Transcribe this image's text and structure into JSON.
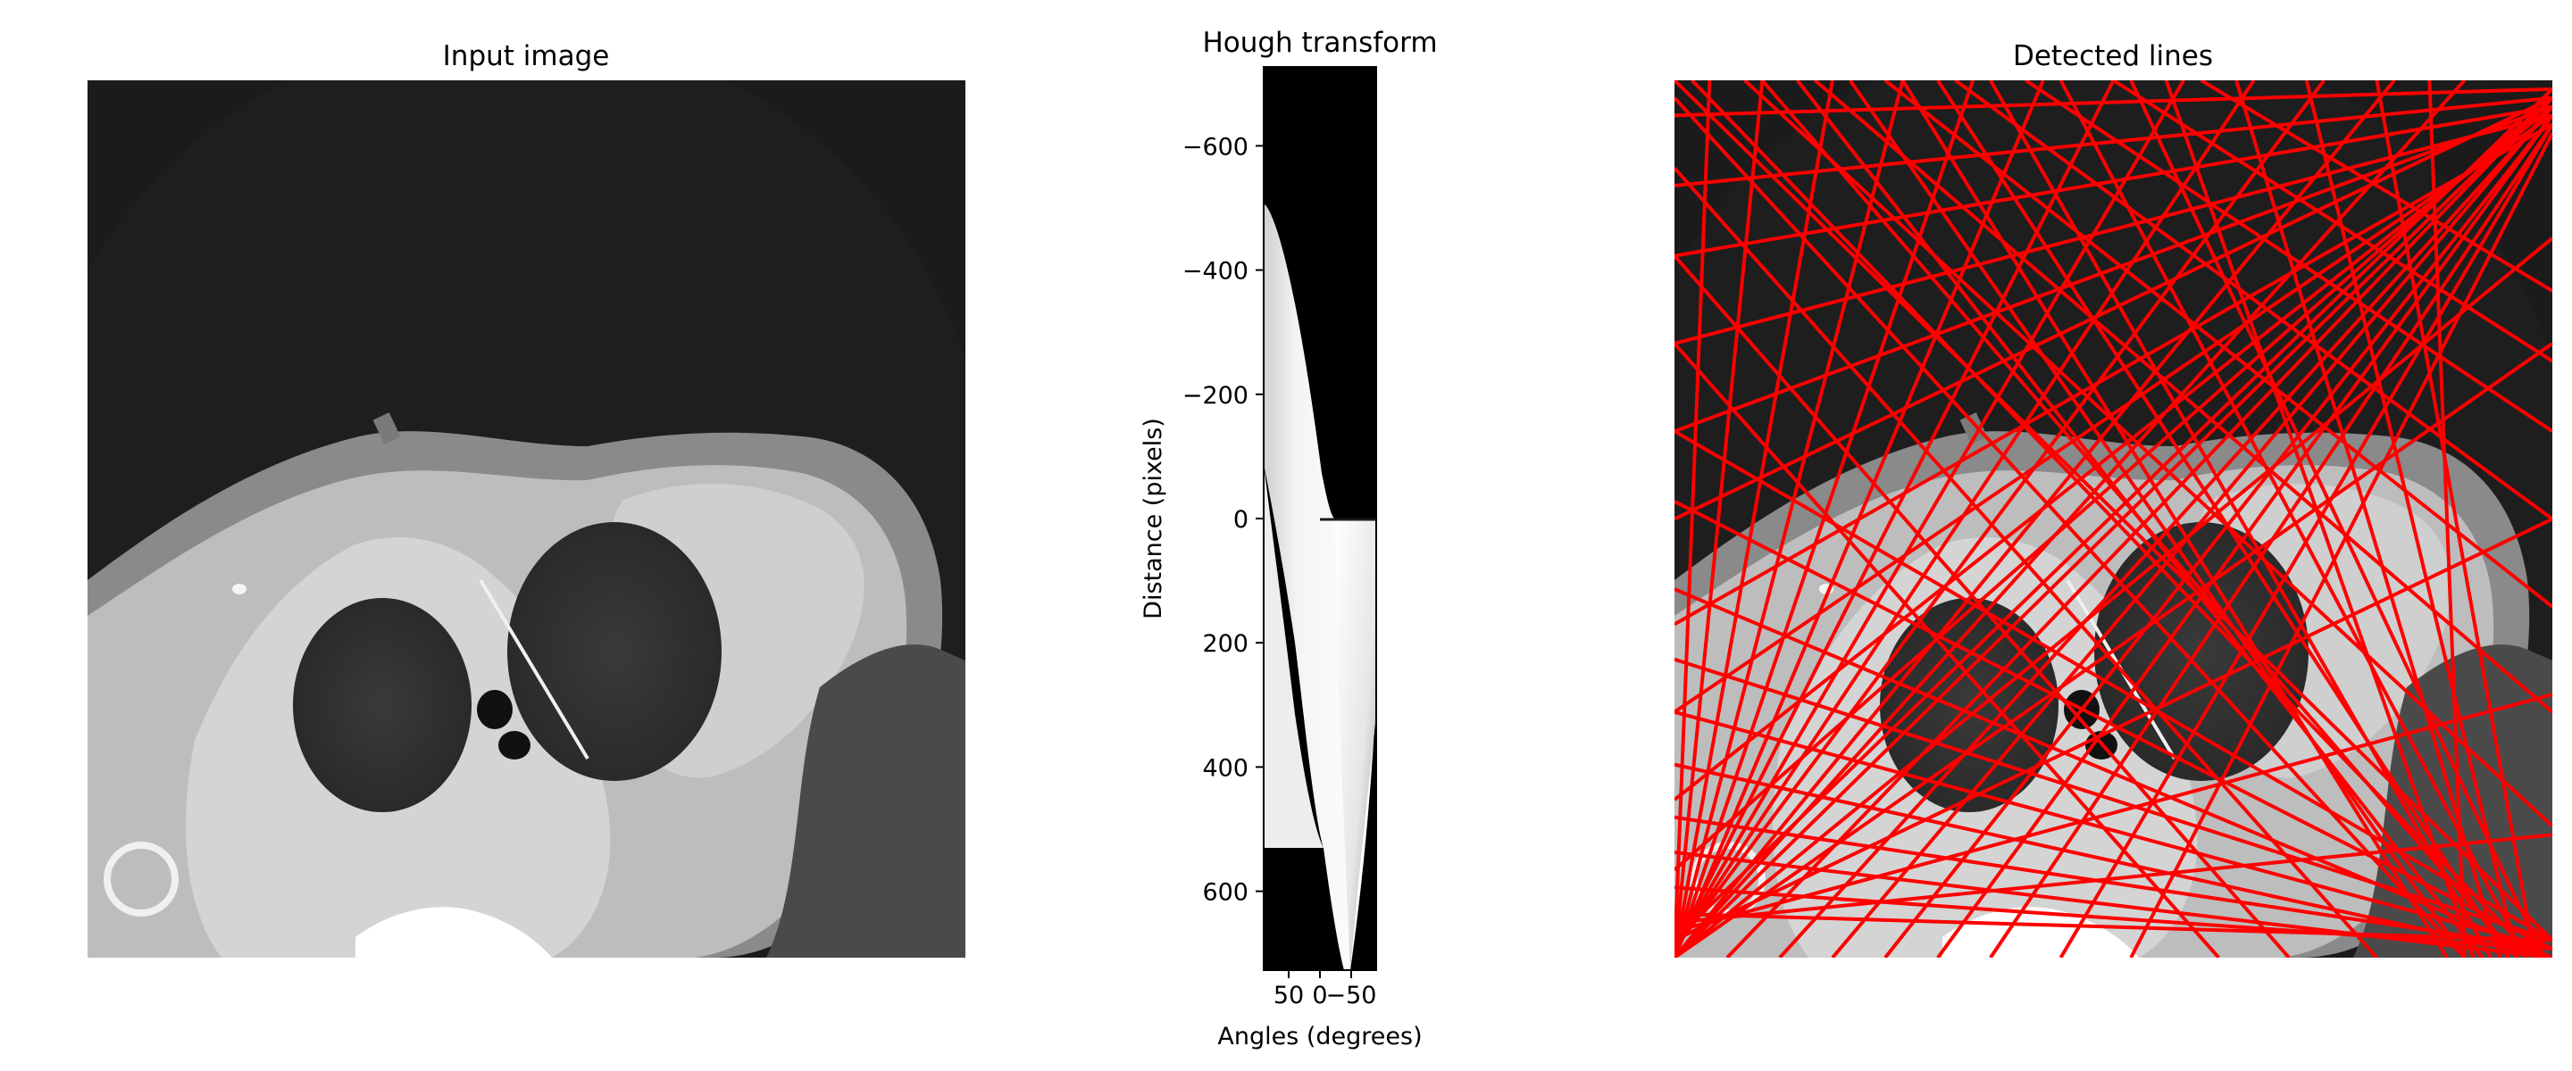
{
  "chart_data": [
    {
      "type": "image",
      "title": "Input image",
      "description": "grayscale CT slice"
    },
    {
      "type": "heatmap",
      "title": "Hough transform",
      "xlabel": "Angles (degrees)",
      "ylabel": "Distance (pixels)",
      "xticks": [
        50,
        0,
        -50
      ],
      "xtick_labels": [
        "50",
        "0",
        "−50"
      ],
      "xlim": [
        90,
        -90
      ],
      "yticks": [
        -600,
        -400,
        -200,
        0,
        200,
        400,
        600
      ],
      "ytick_labels": [
        "−600",
        "−400",
        "−200",
        "0",
        "200",
        "400",
        "600"
      ],
      "ylim": [
        727,
        -727
      ],
      "colormap": "gray"
    },
    {
      "type": "image",
      "title": "Detected lines",
      "line_color": "#ff0000",
      "lines": [
        [
          [
            0,
            0
          ],
          [
            1,
            0.98
          ]
        ],
        [
          [
            0.08,
            0
          ],
          [
            1,
            0.85
          ]
        ],
        [
          [
            0.16,
            0
          ],
          [
            1,
            0.72
          ]
        ],
        [
          [
            0.24,
            0
          ],
          [
            1,
            0.6
          ]
        ],
        [
          [
            0.32,
            0
          ],
          [
            1,
            0.5
          ]
        ],
        [
          [
            0.4,
            0
          ],
          [
            1,
            0.4
          ]
        ],
        [
          [
            0.5,
            0
          ],
          [
            1,
            0.32
          ]
        ],
        [
          [
            0.6,
            0
          ],
          [
            1,
            0.24
          ]
        ],
        [
          [
            0.02,
            0
          ],
          [
            0.98,
            1
          ]
        ],
        [
          [
            0.1,
            0
          ],
          [
            0.96,
            1
          ]
        ],
        [
          [
            0.14,
            0
          ],
          [
            0.92,
            1
          ]
        ],
        [
          [
            0.2,
            0
          ],
          [
            0.9,
            1
          ]
        ],
        [
          [
            0.26,
            0
          ],
          [
            0.88,
            1
          ]
        ],
        [
          [
            0.3,
            0
          ],
          [
            0.95,
            1
          ]
        ],
        [
          [
            0.36,
            0
          ],
          [
            0.93,
            1
          ]
        ],
        [
          [
            0.44,
            0
          ],
          [
            0.97,
            1
          ]
        ],
        [
          [
            0.52,
            0
          ],
          [
            0.99,
            1
          ]
        ],
        [
          [
            0.56,
            0
          ],
          [
            0.91,
            1
          ]
        ],
        [
          [
            0.64,
            0
          ],
          [
            0.94,
            1
          ]
        ],
        [
          [
            0.72,
            0
          ],
          [
            0.96,
            1
          ]
        ],
        [
          [
            0.8,
            0
          ],
          [
            0.98,
            1
          ]
        ],
        [
          [
            0.86,
            0
          ],
          [
            0.9,
            1
          ]
        ],
        [
          [
            1,
            0.02
          ],
          [
            0,
            1
          ]
        ],
        [
          [
            1,
            0.02
          ],
          [
            0.06,
            1
          ]
        ],
        [
          [
            1,
            0.03
          ],
          [
            0.12,
            1
          ]
        ],
        [
          [
            1,
            0.03
          ],
          [
            0.18,
            1
          ]
        ],
        [
          [
            1,
            0.04
          ],
          [
            0.24,
            1
          ]
        ],
        [
          [
            1,
            0.04
          ],
          [
            0.3,
            1
          ]
        ],
        [
          [
            1,
            0.05
          ],
          [
            0.36,
            1
          ]
        ],
        [
          [
            1,
            0.05
          ],
          [
            0.44,
            1
          ]
        ],
        [
          [
            1,
            0.06
          ],
          [
            0.52,
            1
          ]
        ],
        [
          [
            1,
            0.01
          ],
          [
            0,
            0.98
          ]
        ],
        [
          [
            1,
            0.02
          ],
          [
            0,
            0.9
          ]
        ],
        [
          [
            1,
            0.03
          ],
          [
            0,
            0.82
          ]
        ],
        [
          [
            1,
            0.04
          ],
          [
            0,
            0.72
          ]
        ],
        [
          [
            1,
            0.05
          ],
          [
            0,
            0.62
          ]
        ],
        [
          [
            1,
            0.02
          ],
          [
            0,
            0.5
          ]
        ],
        [
          [
            1,
            0.03
          ],
          [
            0,
            0.4
          ]
        ],
        [
          [
            1,
            0.04
          ],
          [
            0,
            0.3
          ]
        ],
        [
          [
            1,
            0.03
          ],
          [
            0,
            0.2
          ]
        ],
        [
          [
            1,
            0.02
          ],
          [
            0,
            0.12
          ]
        ],
        [
          [
            1,
            0.01
          ],
          [
            0,
            0.04
          ]
        ],
        [
          [
            0,
            1
          ],
          [
            0.04,
            0
          ]
        ],
        [
          [
            0,
            1
          ],
          [
            0.1,
            0
          ]
        ],
        [
          [
            0,
            1
          ],
          [
            0.18,
            0
          ]
        ],
        [
          [
            0,
            1
          ],
          [
            0.26,
            0
          ]
        ],
        [
          [
            0,
            1
          ],
          [
            0.34,
            0
          ]
        ],
        [
          [
            0,
            1
          ],
          [
            0.42,
            0
          ]
        ],
        [
          [
            0,
            0.99
          ],
          [
            0.5,
            0
          ]
        ],
        [
          [
            0,
            0.99
          ],
          [
            0.58,
            0
          ]
        ],
        [
          [
            0,
            0.99
          ],
          [
            0.66,
            0
          ]
        ],
        [
          [
            0,
            0.99
          ],
          [
            0.74,
            0
          ]
        ],
        [
          [
            0,
            1
          ],
          [
            0.82,
            0
          ]
        ],
        [
          [
            0,
            1
          ],
          [
            0.9,
            0
          ]
        ],
        [
          [
            0,
            1
          ],
          [
            1,
            0.18
          ]
        ],
        [
          [
            0,
            1
          ],
          [
            1,
            0.3
          ]
        ],
        [
          [
            0,
            0.98
          ],
          [
            1,
            0.5
          ]
        ],
        [
          [
            0,
            0.97
          ],
          [
            1,
            0.7
          ]
        ],
        [
          [
            0,
            0.96
          ],
          [
            1,
            0.86
          ]
        ],
        [
          [
            0,
            0.95
          ],
          [
            1,
            0.98
          ]
        ],
        [
          [
            0,
            0.92
          ],
          [
            1,
            0.99
          ]
        ],
        [
          [
            0,
            0.88
          ],
          [
            1,
            1
          ]
        ],
        [
          [
            0,
            0.84
          ],
          [
            1,
            0.99
          ]
        ],
        [
          [
            0,
            0.78
          ],
          [
            1,
            1
          ]
        ],
        [
          [
            0,
            0.72
          ],
          [
            1,
            0.99
          ]
        ],
        [
          [
            0,
            0.66
          ],
          [
            1,
            0.98
          ]
        ],
        [
          [
            0,
            0.58
          ],
          [
            1,
            1
          ]
        ],
        [
          [
            0,
            0.48
          ],
          [
            1,
            0.99
          ]
        ],
        [
          [
            0,
            0.4
          ],
          [
            1,
            0.98
          ]
        ],
        [
          [
            0,
            0.2
          ],
          [
            0.7,
            1
          ]
        ],
        [
          [
            0,
            0.3
          ],
          [
            0.62,
            1
          ]
        ],
        [
          [
            0,
            0.1
          ],
          [
            0.8,
            1
          ]
        ],
        [
          [
            0,
            0.02
          ],
          [
            0.9,
            1
          ]
        ]
      ]
    }
  ]
}
